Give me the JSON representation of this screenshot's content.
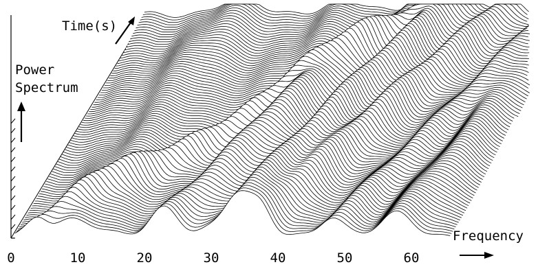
{
  "chart_data": {
    "type": "waterfall-3d-line",
    "title": "",
    "xlabel": "Frequency",
    "ylabel": "Power Spectrum",
    "zlabel": "Time(s)",
    "xlim": [
      0,
      70
    ],
    "x_ticks": [
      0,
      10,
      20,
      30,
      40,
      50,
      60
    ],
    "x_tick_labels": [
      "0",
      "10",
      "20",
      "30",
      "40",
      "50",
      "60"
    ],
    "trace_count": 92,
    "grid": false,
    "legend": "none"
  }
}
